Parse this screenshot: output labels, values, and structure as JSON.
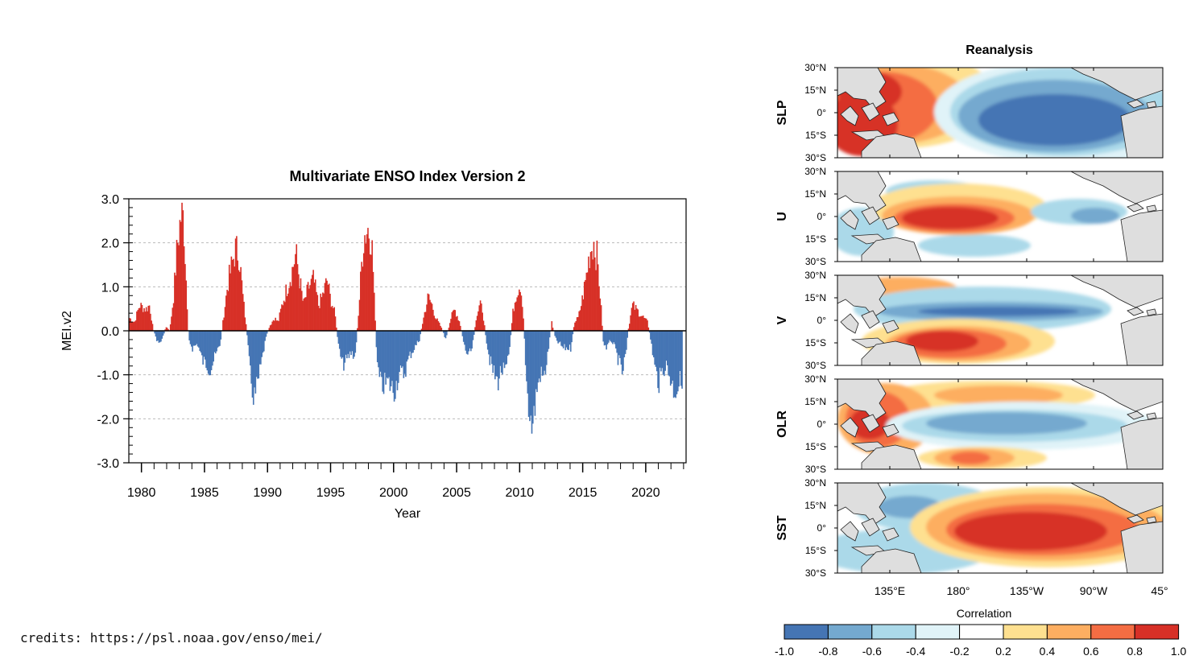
{
  "chart_data": [
    {
      "type": "bar",
      "title": "Multivariate ENSO Index Version 2",
      "xlabel": "Year",
      "ylabel": "MEI.v2",
      "xlim": [
        1979,
        2023.2
      ],
      "ylim": [
        -3.0,
        3.0
      ],
      "xticks": [
        "1980",
        "1985",
        "1990",
        "1995",
        "2000",
        "2005",
        "2010",
        "2015",
        "2020"
      ],
      "yticks": [
        "3.0",
        "2.0",
        "1.0",
        "0.0",
        "-1.0",
        "-2.0",
        "-3.0"
      ],
      "grid": "dashed at ±1.0 and ±2.0",
      "positive_color": "#d73027",
      "negative_color": "#4575b4",
      "keypoints": [
        [
          1979.0,
          0.3
        ],
        [
          1979.4,
          0.2
        ],
        [
          1979.8,
          0.6
        ],
        [
          1980.3,
          0.5
        ],
        [
          1980.6,
          0.6
        ],
        [
          1980.9,
          0.0
        ],
        [
          1981.3,
          -0.3
        ],
        [
          1981.6,
          -0.2
        ],
        [
          1981.9,
          0.1
        ],
        [
          1982.2,
          0.0
        ],
        [
          1982.5,
          0.8
        ],
        [
          1982.8,
          2.0
        ],
        [
          1983.1,
          2.7
        ],
        [
          1983.3,
          2.6
        ],
        [
          1983.5,
          1.2
        ],
        [
          1983.7,
          -0.2
        ],
        [
          1984.0,
          -0.4
        ],
        [
          1984.4,
          -0.3
        ],
        [
          1984.8,
          -0.7
        ],
        [
          1985.2,
          -0.8
        ],
        [
          1985.4,
          -0.9
        ],
        [
          1985.8,
          -0.6
        ],
        [
          1986.2,
          -0.3
        ],
        [
          1986.5,
          0.4
        ],
        [
          1986.8,
          1.1
        ],
        [
          1987.1,
          1.5
        ],
        [
          1987.4,
          1.9
        ],
        [
          1987.7,
          1.8
        ],
        [
          1988.0,
          0.8
        ],
        [
          1988.3,
          0.0
        ],
        [
          1988.6,
          -1.1
        ],
        [
          1988.9,
          -1.6
        ],
        [
          1989.2,
          -1.2
        ],
        [
          1989.5,
          -0.7
        ],
        [
          1989.8,
          -0.2
        ],
        [
          1990.1,
          0.1
        ],
        [
          1990.5,
          0.3
        ],
        [
          1990.8,
          0.2
        ],
        [
          1991.1,
          0.6
        ],
        [
          1991.5,
          1.0
        ],
        [
          1991.9,
          1.4
        ],
        [
          1992.2,
          1.8
        ],
        [
          1992.5,
          1.2
        ],
        [
          1992.8,
          0.6
        ],
        [
          1993.2,
          1.0
        ],
        [
          1993.6,
          1.2
        ],
        [
          1994.0,
          0.6
        ],
        [
          1994.3,
          0.8
        ],
        [
          1994.7,
          1.2
        ],
        [
          1994.9,
          0.8
        ],
        [
          1995.1,
          0.6
        ],
        [
          1995.3,
          0.4
        ],
        [
          1995.6,
          -0.4
        ],
        [
          1995.9,
          -0.8
        ],
        [
          1996.2,
          -0.7
        ],
        [
          1996.6,
          -0.5
        ],
        [
          1996.9,
          -0.6
        ],
        [
          1997.2,
          0.5
        ],
        [
          1997.4,
          1.5
        ],
        [
          1997.6,
          2.2
        ],
        [
          1997.9,
          2.4
        ],
        [
          1998.2,
          2.2
        ],
        [
          1998.4,
          1.0
        ],
        [
          1998.6,
          -0.6
        ],
        [
          1998.8,
          -1.1
        ],
        [
          1999.0,
          -1.3
        ],
        [
          1999.5,
          -1.2
        ],
        [
          2000.0,
          -1.4
        ],
        [
          2000.4,
          -1.0
        ],
        [
          2000.8,
          -1.0
        ],
        [
          2001.2,
          -0.6
        ],
        [
          2001.6,
          -0.4
        ],
        [
          2002.0,
          -0.2
        ],
        [
          2002.4,
          0.4
        ],
        [
          2002.7,
          0.8
        ],
        [
          2003.0,
          0.6
        ],
        [
          2003.3,
          0.3
        ],
        [
          2003.7,
          0.1
        ],
        [
          2004.1,
          -0.2
        ],
        [
          2004.5,
          0.3
        ],
        [
          2004.8,
          0.5
        ],
        [
          2005.2,
          0.2
        ],
        [
          2005.6,
          -0.4
        ],
        [
          2005.9,
          -0.6
        ],
        [
          2006.2,
          -0.4
        ],
        [
          2006.5,
          0.3
        ],
        [
          2006.8,
          0.6
        ],
        [
          2007.0,
          0.5
        ],
        [
          2007.3,
          -0.2
        ],
        [
          2007.6,
          -0.7
        ],
        [
          2007.9,
          -1.0
        ],
        [
          2008.2,
          -1.2
        ],
        [
          2008.5,
          -0.9
        ],
        [
          2008.8,
          -1.0
        ],
        [
          2009.1,
          -0.6
        ],
        [
          2009.4,
          0.4
        ],
        [
          2009.7,
          0.9
        ],
        [
          2010.0,
          1.1
        ],
        [
          2010.2,
          0.6
        ],
        [
          2010.5,
          -1.2
        ],
        [
          2010.8,
          -2.1
        ],
        [
          2011.0,
          -2.2
        ],
        [
          2011.3,
          -1.4
        ],
        [
          2011.6,
          -1.0
        ],
        [
          2011.9,
          -1.1
        ],
        [
          2012.2,
          -0.5
        ],
        [
          2012.5,
          0.2
        ],
        [
          2012.8,
          -0.2
        ],
        [
          2013.1,
          -0.3
        ],
        [
          2013.4,
          -0.4
        ],
        [
          2013.7,
          -0.4
        ],
        [
          2014.0,
          -0.4
        ],
        [
          2014.3,
          0.2
        ],
        [
          2014.6,
          0.3
        ],
        [
          2014.9,
          0.7
        ],
        [
          2015.2,
          1.2
        ],
        [
          2015.5,
          1.8
        ],
        [
          2015.8,
          2.1
        ],
        [
          2016.1,
          1.7
        ],
        [
          2016.3,
          1.0
        ],
        [
          2016.6,
          -0.3
        ],
        [
          2016.9,
          -0.4
        ],
        [
          2017.2,
          -0.2
        ],
        [
          2017.5,
          -0.4
        ],
        [
          2017.8,
          -0.7
        ],
        [
          2018.1,
          -1.0
        ],
        [
          2018.4,
          -0.5
        ],
        [
          2018.6,
          0.1
        ],
        [
          2018.9,
          0.6
        ],
        [
          2019.2,
          0.5
        ],
        [
          2019.5,
          0.4
        ],
        [
          2019.8,
          0.3
        ],
        [
          2020.1,
          0.2
        ],
        [
          2020.4,
          -0.3
        ],
        [
          2020.7,
          -0.9
        ],
        [
          2021.0,
          -1.2
        ],
        [
          2021.3,
          -0.9
        ],
        [
          2021.6,
          -0.8
        ],
        [
          2021.9,
          -1.1
        ],
        [
          2022.2,
          -1.4
        ],
        [
          2022.5,
          -1.3
        ],
        [
          2022.8,
          -1.1
        ]
      ]
    },
    {
      "type": "heatmap",
      "title": "Reanalysis",
      "panels": [
        "SLP",
        "U",
        "V",
        "OLR",
        "SST"
      ],
      "lat_labels": [
        "30°N",
        "15°N",
        "0°",
        "15°S",
        "30°S"
      ],
      "lon_labels": [
        "135°E",
        "180°",
        "135°W",
        "90°W",
        "45°"
      ],
      "colorbar_label": "Correlation",
      "colorbar_ticks": [
        "-1.0",
        "-0.8",
        "-0.6",
        "-0.4",
        "-0.2",
        "0.2",
        "0.4",
        "0.6",
        "0.8",
        "1.0"
      ],
      "colorbar_colors": [
        "#4575b4",
        "#74a9cf",
        "#abd9e9",
        "#e0f3f8",
        "#ffffff",
        "#fee090",
        "#fdae61",
        "#f46d43",
        "#d73027"
      ]
    }
  ],
  "credits": "credits: https://psl.noaa.gov/enso/mei/"
}
